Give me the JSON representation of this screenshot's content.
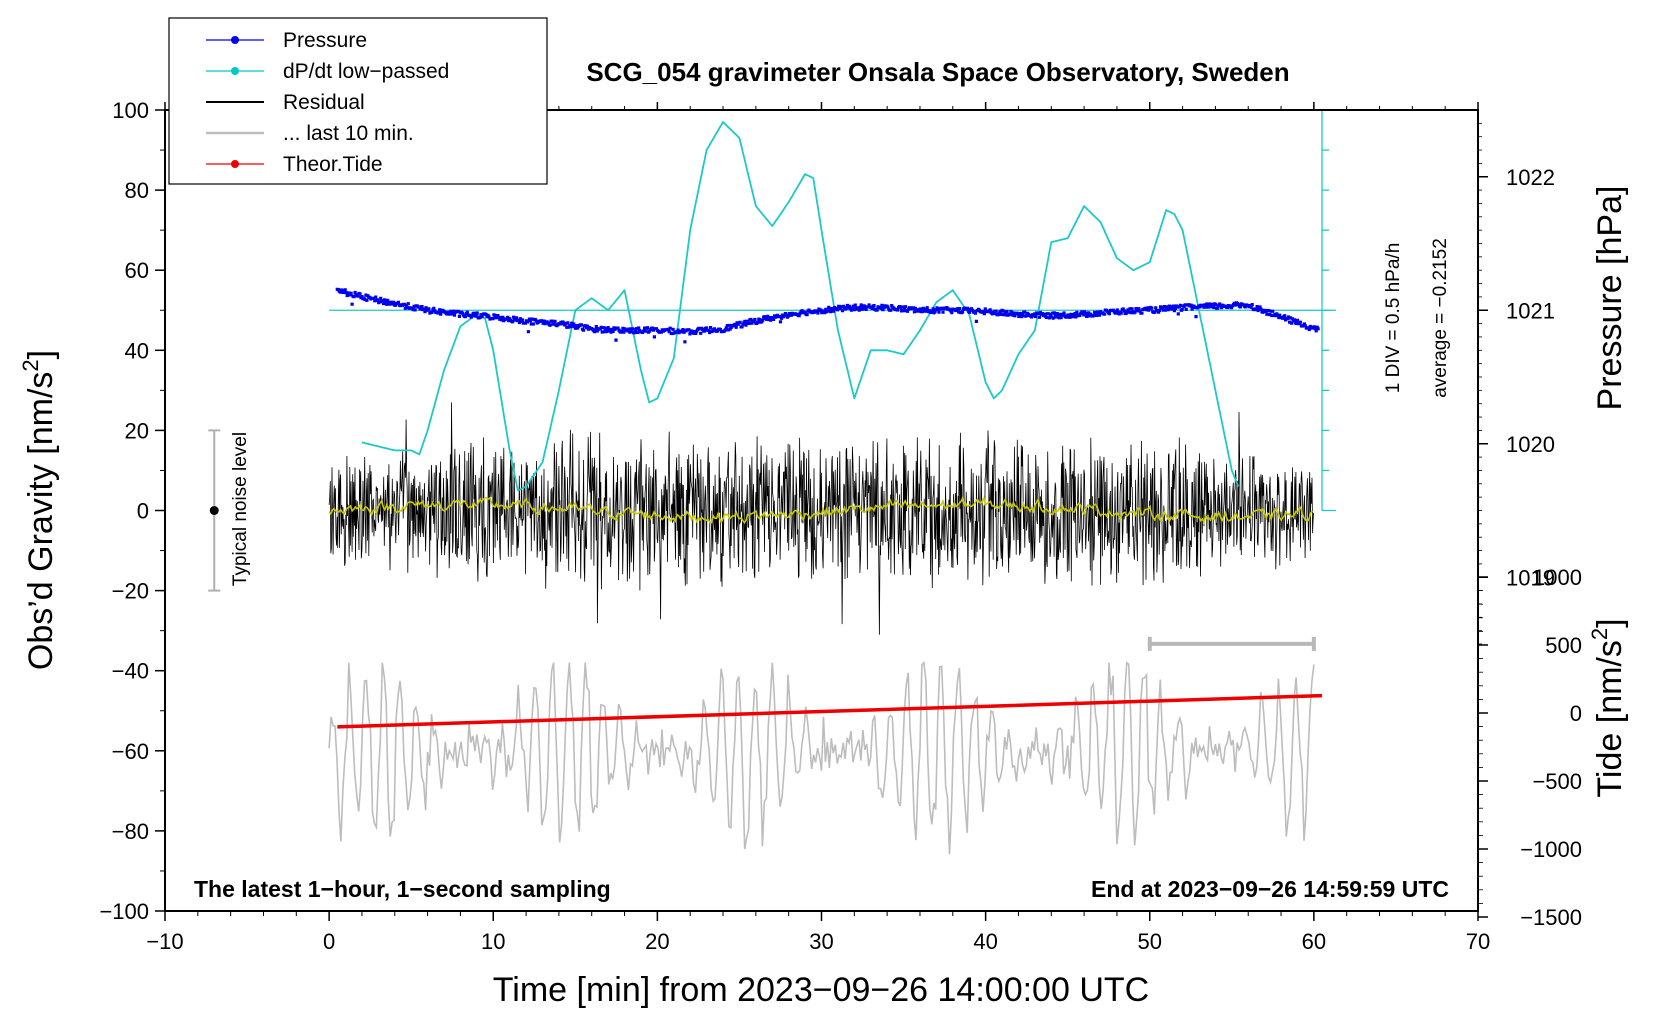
{
  "chart_data": {
    "type": "line",
    "title": "SCG_054 gravimeter Onsala Space Observatory, Sweden",
    "xlabel": "Time [min] from 2023−09−26 14:00:00 UTC",
    "ylabel": "Obs’d Gravity [nm/s",
    "ylabel_sup": "2",
    "ylabel_end": "]",
    "pressure_label": "Pressure [hPa]",
    "tide_label": "Tide [nm/s",
    "tide_label_sup": "2",
    "tide_label_end": "]",
    "xlim": [
      -10,
      70
    ],
    "ylim": [
      -100,
      100
    ],
    "x_ticks": [
      "−10",
      "0",
      "10",
      "20",
      "30",
      "40",
      "50",
      "60",
      "70"
    ],
    "y_ticks": [
      "−100",
      "−80",
      "−60",
      "−40",
      "−20",
      "0",
      "20",
      "40",
      "60",
      "80",
      "100"
    ],
    "pressure_axis": {
      "range_hPa": [
        1016.5,
        1022.5
      ],
      "ticks": [
        "1019",
        "1020",
        "1021",
        "1022"
      ]
    },
    "tide_axis": {
      "ticks": [
        "−1500",
        "−1000",
        "−500",
        "0",
        "500",
        "1000"
      ]
    },
    "footer_left": "The latest 1−hour, 1−second sampling",
    "footer_right": "End at 2023−09−26 14:59:59 UTC",
    "noise_label": "Typical noise level",
    "noise_range": [
      -20,
      20
    ],
    "dpdt_scale_label": "1 DIV = 0.5 hPa/h",
    "dpdt_average_label": "average = −0.2152",
    "legend": [
      {
        "label": "Pressure",
        "color": "#0000ee",
        "marker": true
      },
      {
        "label": "dP/dt low−passed",
        "color": "#00c8c8",
        "marker": true
      },
      {
        "label": "Residual",
        "color": "#000000",
        "marker": false
      },
      {
        "label": "... last 10 min.",
        "color": "#bdbdbd",
        "marker": false
      },
      {
        "label": "Theor.Tide",
        "color": "#ee0000",
        "marker": true
      }
    ],
    "colors": {
      "pressure": "#0000ee",
      "dpdt": "#1ec8c8",
      "residual": "#000000",
      "residual_smooth": "#c8c800",
      "last10": "#bdbdbd",
      "tide": "#ee0000"
    },
    "series": [
      {
        "name": "Pressure (hPa)",
        "x": [
          0.5,
          2,
          4,
          6,
          8,
          10,
          12,
          14,
          16,
          18,
          20,
          22,
          24,
          26,
          28,
          30,
          32,
          34,
          36,
          38,
          40,
          42,
          44,
          46,
          48,
          50,
          52,
          54,
          56,
          58,
          60.3
        ],
        "values": [
          1021.15,
          1021.1,
          1021.05,
          1021.0,
          1020.97,
          1020.95,
          1020.92,
          1020.9,
          1020.86,
          1020.85,
          1020.85,
          1020.84,
          1020.86,
          1020.92,
          1020.97,
          1021.0,
          1021.02,
          1021.02,
          1021.0,
          1021.0,
          1020.99,
          1020.97,
          1020.96,
          1020.97,
          1020.99,
          1021.0,
          1021.02,
          1021.03,
          1021.04,
          1020.95,
          1020.85
        ]
      },
      {
        "name": "dP/dt low-passed (nm/s2 axis units)",
        "x": [
          2,
          3,
          4,
          5,
          5.5,
          6,
          7,
          8,
          9,
          9.5,
          10,
          11,
          11.5,
          12,
          13,
          14,
          15,
          16,
          17,
          18,
          19,
          19.5,
          20,
          21,
          22,
          23,
          24,
          25,
          26,
          27,
          28,
          29,
          29.5,
          30,
          31,
          32,
          33,
          34,
          35,
          36,
          37,
          38,
          39,
          40,
          40.5,
          41,
          42,
          43,
          44,
          45,
          46,
          47,
          48,
          49,
          50,
          51,
          51.5,
          52,
          53,
          54,
          55,
          55.5
        ],
        "values": [
          17,
          16,
          15,
          15,
          14,
          20,
          35,
          46,
          49,
          48,
          40,
          15,
          5,
          6,
          12,
          30,
          50,
          53,
          50,
          55,
          35,
          27,
          28,
          38,
          70,
          90,
          97,
          93,
          76,
          71,
          77,
          84,
          83,
          70,
          45,
          28,
          40,
          40,
          39,
          45,
          52,
          55,
          49,
          32,
          28,
          30,
          39,
          45,
          67,
          68,
          76,
          72,
          63,
          60,
          62,
          75,
          74,
          70,
          50,
          30,
          10,
          5
        ]
      },
      {
        "name": "Residual envelope (nm/s2)",
        "x": [
          0,
          10,
          20,
          30,
          40,
          50,
          60
        ],
        "values": [
          10,
          15,
          15,
          15,
          15,
          15,
          8
        ]
      },
      {
        "name": "Theor.Tide (nm/s2)",
        "x": [
          0.5,
          60.5
        ],
        "values": [
          -60,
          75
        ]
      }
    ]
  }
}
